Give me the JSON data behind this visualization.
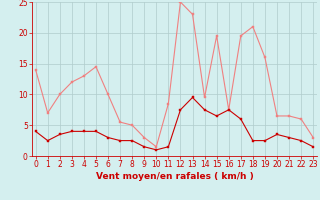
{
  "hours": [
    0,
    1,
    2,
    3,
    4,
    5,
    6,
    7,
    8,
    9,
    10,
    11,
    12,
    13,
    14,
    15,
    16,
    17,
    18,
    19,
    20,
    21,
    22,
    23
  ],
  "mean_wind": [
    4,
    2.5,
    3.5,
    4,
    4,
    4,
    3,
    2.5,
    2.5,
    1.5,
    1,
    1.5,
    7.5,
    9.5,
    7.5,
    6.5,
    7.5,
    6,
    2.5,
    2.5,
    3.5,
    3,
    2.5,
    1.5
  ],
  "gust_wind": [
    14,
    7,
    10,
    12,
    13,
    14.5,
    10,
    5.5,
    5,
    3,
    1.5,
    8.5,
    25,
    23,
    9.5,
    19.5,
    7.5,
    19.5,
    21,
    16,
    6.5,
    6.5,
    6,
    3
  ],
  "mean_color": "#cc0000",
  "gust_color": "#f08080",
  "bg_color": "#d4efef",
  "grid_color": "#b0cccc",
  "xlabel": "Vent moyen/en rafales ( km/h )",
  "ylim": [
    0,
    25
  ],
  "yticks": [
    0,
    5,
    10,
    15,
    20,
    25
  ],
  "tick_fontsize": 5.5,
  "label_fontsize": 6.5
}
